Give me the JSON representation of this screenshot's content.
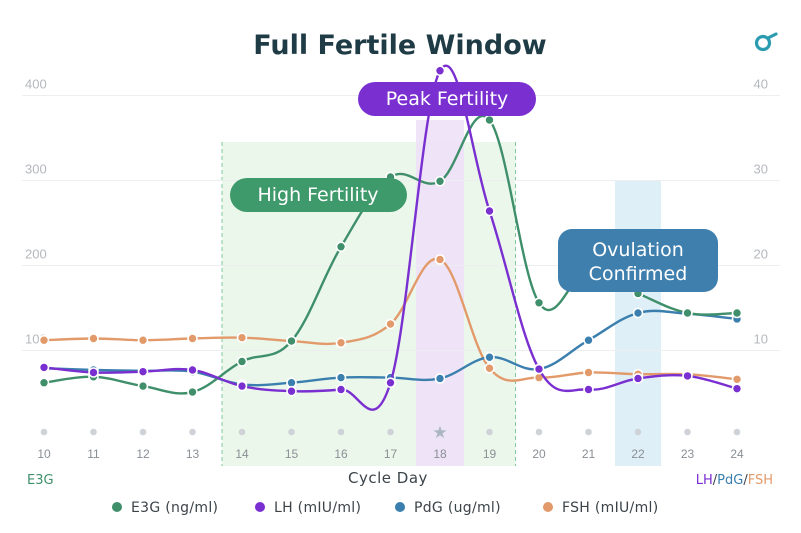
{
  "colors": {
    "e3g": "#3f8f6b",
    "lh": "#7a2fd0",
    "pdg": "#3a7fae",
    "fsh": "#e29a6b",
    "green_zone": "#e6f4e6",
    "purple_zone": "#efe3f8",
    "blue_zone": "#ddeef7",
    "badge_green": "#3f9a6b",
    "badge_purple": "#7a2fd0",
    "badge_blue": "#3f7fae",
    "logo": "#2b9bb0"
  },
  "header": {
    "logo_icon": "link-logo-icon"
  },
  "badges": {
    "high_fertility": "High Fertility",
    "peak_fertility": "Peak Fertility",
    "ovulation_line1": "Ovulation",
    "ovulation_line2": "Confirmed"
  },
  "bottom": {
    "left_label": "E3G",
    "right_label_lh": "LH",
    "slash1": "/",
    "right_label_pdg": "PdG",
    "slash2": "/",
    "right_label_fsh": "FSH"
  },
  "chart_data": {
    "type": "line",
    "title": "Full Fertile Window",
    "xlabel": "Cycle Day",
    "x": [
      10,
      11,
      12,
      13,
      14,
      15,
      16,
      17,
      18,
      19,
      20,
      21,
      22,
      23,
      24
    ],
    "peak_marker_day": 18,
    "left_axis": {
      "label": "E3G",
      "ticks": [
        "100",
        "200",
        "300",
        "400"
      ],
      "range": [
        -50,
        450
      ]
    },
    "right_axis": {
      "label": "LH/PdG/FSH",
      "ticks": [
        "10",
        "20",
        "30",
        "40"
      ],
      "range": [
        -5,
        45
      ]
    },
    "grid": true,
    "legend_position": "bottom",
    "zones": [
      {
        "name": "High Fertility",
        "from_day": 14,
        "to_day": 19
      },
      {
        "name": "Peak Fertility",
        "day": 18
      },
      {
        "name": "Ovulation Confirmed",
        "day": 22
      }
    ],
    "series": [
      {
        "name": "E3G (ng/ml)",
        "axis": "left",
        "color_key": "e3g",
        "values": [
          48,
          55,
          44,
          37,
          73,
          97,
          208,
          290,
          285,
          357,
          142,
          180,
          153,
          130,
          130
        ]
      },
      {
        "name": "LH (mIU/ml)",
        "axis": "right",
        "color_key": "lh",
        "values": [
          6.6,
          6.0,
          6.1,
          6.3,
          4.4,
          3.8,
          4.0,
          4.8,
          41.5,
          25.0,
          6.4,
          4.0,
          5.3,
          5.6,
          4.1
        ]
      },
      {
        "name": "PdG (ug/ml)",
        "axis": "right",
        "color_key": "pdg",
        "values": [
          6.5,
          6.3,
          6.2,
          6.1,
          4.6,
          4.8,
          5.4,
          5.4,
          5.3,
          7.8,
          6.4,
          9.8,
          13.0,
          12.9,
          12.3
        ]
      },
      {
        "name": "FSH (mIU/ml)",
        "axis": "right",
        "color_key": "fsh",
        "values": [
          9.8,
          10.0,
          9.8,
          10.0,
          10.1,
          9.7,
          9.5,
          11.7,
          19.3,
          6.5,
          5.4,
          6.0,
          5.8,
          5.8,
          5.2
        ]
      }
    ]
  }
}
